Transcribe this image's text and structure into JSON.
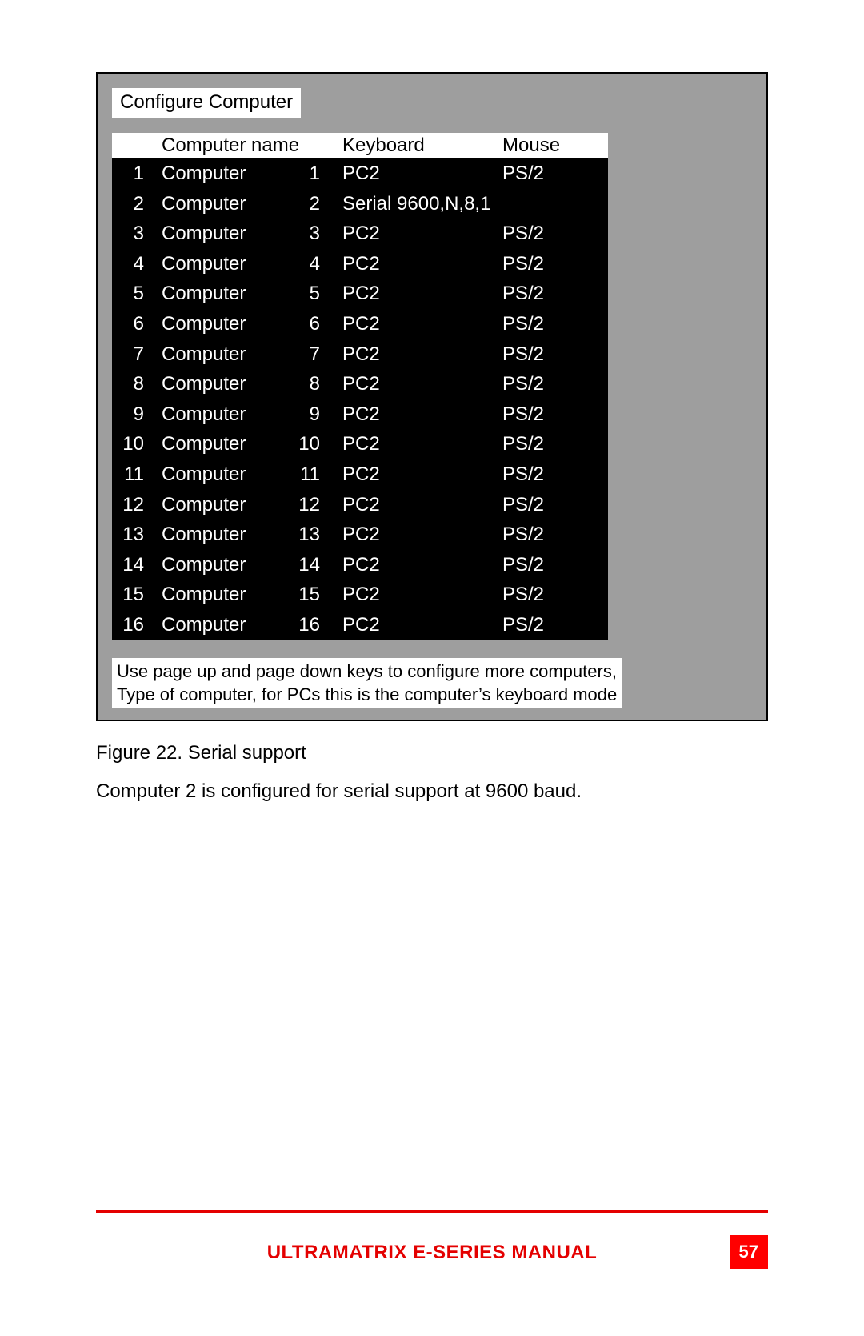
{
  "panel": {
    "title": "Configure Computer",
    "columns": {
      "idx": "",
      "name": "Computer name",
      "keyboard": "Keyboard",
      "mouse": "Mouse"
    },
    "rows": [
      {
        "idx": "1",
        "name": "Computer",
        "num": "1",
        "keyboard": "PC2",
        "mouse": "PS/2"
      },
      {
        "idx": "2",
        "name": "Computer",
        "num": "2",
        "keyboard": "Serial 9600,N,8,1",
        "mouse": ""
      },
      {
        "idx": "3",
        "name": "Computer",
        "num": "3",
        "keyboard": "PC2",
        "mouse": "PS/2"
      },
      {
        "idx": "4",
        "name": "Computer",
        "num": "4",
        "keyboard": "PC2",
        "mouse": "PS/2"
      },
      {
        "idx": "5",
        "name": "Computer",
        "num": "5",
        "keyboard": "PC2",
        "mouse": "PS/2"
      },
      {
        "idx": "6",
        "name": "Computer",
        "num": "6",
        "keyboard": "PC2",
        "mouse": "PS/2"
      },
      {
        "idx": "7",
        "name": "Computer",
        "num": "7",
        "keyboard": "PC2",
        "mouse": "PS/2"
      },
      {
        "idx": "8",
        "name": "Computer",
        "num": "8",
        "keyboard": "PC2",
        "mouse": "PS/2"
      },
      {
        "idx": "9",
        "name": "Computer",
        "num": "9",
        "keyboard": "PC2",
        "mouse": "PS/2"
      },
      {
        "idx": "10",
        "name": "Computer",
        "num": "10",
        "keyboard": "PC2",
        "mouse": "PS/2"
      },
      {
        "idx": "11",
        "name": "Computer",
        "num": "11",
        "keyboard": "PC2",
        "mouse": "PS/2"
      },
      {
        "idx": "12",
        "name": "Computer",
        "num": "12",
        "keyboard": "PC2",
        "mouse": "PS/2"
      },
      {
        "idx": "13",
        "name": "Computer",
        "num": "13",
        "keyboard": "PC2",
        "mouse": "PS/2"
      },
      {
        "idx": "14",
        "name": "Computer",
        "num": "14",
        "keyboard": "PC2",
        "mouse": "PS/2"
      },
      {
        "idx": "15",
        "name": "Computer",
        "num": "15",
        "keyboard": "PC2",
        "mouse": "PS/2"
      },
      {
        "idx": "16",
        "name": "Computer",
        "num": "16",
        "keyboard": "PC2",
        "mouse": "PS/2"
      }
    ],
    "hint_line1": "Use page up and page down keys to configure more computers,",
    "hint_line2": "Type of computer, for PCs this is the computer’s keyboard mode"
  },
  "caption": "Figure 22. Serial support",
  "body": "Computer 2 is configured for serial support at 9600 baud.",
  "footer": {
    "title": "ULTRAMATRIX E-SERIES MANUAL",
    "page": "57"
  },
  "colors": {
    "panel_bg": "#9e9e9e",
    "table_bg": "#000000",
    "table_fg": "#ffffff",
    "header_bg": "#ffffff",
    "header_fg": "#000000",
    "accent": "#e40000",
    "page_badge_bg": "#ff0000"
  }
}
